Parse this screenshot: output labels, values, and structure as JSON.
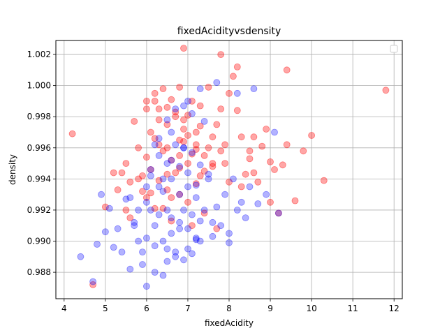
{
  "chart_data": {
    "type": "scatter",
    "title": "fixedAcidityvsdensity",
    "xlabel": "fixedAcidity",
    "ylabel": "density",
    "xlim": [
      3.8,
      12.2
    ],
    "ylim": [
      0.9863,
      1.0029
    ],
    "xticks": [
      4,
      5,
      6,
      7,
      8,
      9,
      10,
      11,
      12
    ],
    "yticks": [
      0.988,
      0.99,
      0.992,
      0.994,
      0.996,
      0.998,
      1.0,
      1.002
    ],
    "ytick_labels": [
      "0.988",
      "0.990",
      "0.992",
      "0.994",
      "0.996",
      "0.998",
      "1.000",
      "1.002"
    ],
    "grid": true,
    "legend_placement": "top-right",
    "series": [
      {
        "color": "#ff0000",
        "alpha": 0.35,
        "x": [
          4.2,
          4.7,
          5.0,
          5.2,
          5.3,
          5.4,
          5.5,
          5.6,
          5.7,
          5.8,
          5.9,
          6.0,
          6.0,
          6.1,
          6.2,
          6.3,
          6.3,
          6.4,
          6.5,
          6.5,
          6.6,
          6.7,
          6.8,
          6.8,
          6.9,
          7.0,
          7.0,
          7.1,
          7.2,
          7.3,
          7.4,
          7.5,
          7.6,
          7.7,
          7.8,
          7.9,
          8.0,
          8.1,
          8.2,
          8.3,
          8.5,
          8.6,
          8.8,
          8.9,
          9.0,
          9.1,
          9.3,
          9.4,
          9.6,
          9.8,
          10.0,
          10.3,
          11.8,
          6.9,
          7.8,
          8.2,
          9.4,
          6.2,
          6.4,
          6.6,
          6.8,
          7.2,
          7.4,
          7.6,
          5.8,
          6.0,
          6.5,
          7.0,
          7.5,
          8.0,
          6.1,
          6.3,
          6.7,
          6.9,
          7.1,
          7.3,
          6.5,
          6.8,
          7.2,
          6.4,
          6.6,
          7.0,
          7.4,
          5.6,
          5.9,
          6.2,
          6.6,
          7.1,
          7.7,
          8.4,
          8.7,
          9.2,
          6.0,
          6.3,
          6.8,
          7.3,
          7.9,
          8.5,
          5.5,
          6.1,
          6.7,
          7.6,
          8.3,
          9.0,
          6.2,
          6.5,
          6.9,
          7.2,
          7.8,
          8.6
        ],
        "y": [
          0.9969,
          0.9872,
          0.9922,
          0.9944,
          0.9933,
          0.9944,
          0.995,
          0.9938,
          0.9977,
          0.996,
          0.9942,
          0.999,
          0.9954,
          0.997,
          0.9995,
          0.9985,
          0.9962,
          0.9998,
          0.996,
          0.9943,
          0.9991,
          0.9983,
          0.9955,
          0.9999,
          0.9964,
          0.9981,
          0.995,
          0.999,
          0.9959,
          0.9987,
          0.9945,
          0.9999,
          0.9967,
          0.9975,
          0.9985,
          0.995,
          0.9995,
          1.0006,
          0.9984,
          0.9967,
          0.9958,
          0.9967,
          0.9961,
          0.9972,
          0.9951,
          0.9946,
          0.9949,
          0.9962,
          0.9926,
          0.9958,
          0.9968,
          0.9939,
          0.9997,
          1.0024,
          1.002,
          1.0012,
          1.001,
          0.9966,
          0.9958,
          0.9952,
          0.9947,
          0.9962,
          0.9955,
          0.9948,
          0.994,
          0.9928,
          0.9975,
          0.9968,
          0.996,
          0.9938,
          0.9946,
          0.9939,
          0.998,
          0.9972,
          0.9956,
          0.9942,
          0.9933,
          0.993,
          0.9937,
          0.9921,
          0.9928,
          0.9925,
          0.9918,
          0.9915,
          0.9932,
          0.9921,
          0.9913,
          0.991,
          0.9908,
          0.9943,
          0.9938,
          0.9918,
          0.9985,
          0.9978,
          0.9965,
          0.9974,
          0.9962,
          0.9953,
          0.992,
          0.9931,
          0.9944,
          0.995,
          0.9935,
          0.9925,
          0.999,
          0.9986,
          0.9978,
          0.997,
          0.9958,
          0.9944
        ]
      },
      {
        "color": "#0000ff",
        "alpha": 0.3,
        "x": [
          4.4,
          4.7,
          4.8,
          4.9,
          5.0,
          5.1,
          5.2,
          5.3,
          5.4,
          5.5,
          5.6,
          5.7,
          5.8,
          5.9,
          6.0,
          6.0,
          6.1,
          6.2,
          6.2,
          6.3,
          6.4,
          6.4,
          6.5,
          6.5,
          6.6,
          6.6,
          6.7,
          6.8,
          6.8,
          6.9,
          6.9,
          7.0,
          7.0,
          7.1,
          7.1,
          7.2,
          7.3,
          7.3,
          7.4,
          7.5,
          7.6,
          7.7,
          7.8,
          7.9,
          8.0,
          8.1,
          8.2,
          8.3,
          8.4,
          8.5,
          8.7,
          8.9,
          9.1,
          9.2,
          5.7,
          6.0,
          6.3,
          6.5,
          6.7,
          6.9,
          7.1,
          7.3,
          7.5,
          5.6,
          5.8,
          6.1,
          6.4,
          6.6,
          6.8,
          7.0,
          7.2,
          6.2,
          6.5,
          6.7,
          6.9,
          7.1,
          7.4,
          6.0,
          6.3,
          6.6,
          6.8,
          7.0,
          7.2,
          5.9,
          6.2,
          6.5,
          6.7,
          7.2,
          7.6,
          8.0,
          6.1,
          6.4,
          6.9,
          7.0,
          7.3,
          7.7,
          8.2,
          8.6,
          6.3,
          6.6
        ],
        "y": [
          0.989,
          0.9874,
          0.9898,
          0.993,
          0.9906,
          0.9921,
          0.9896,
          0.9908,
          0.9893,
          0.9927,
          0.9882,
          0.9912,
          0.99,
          0.9885,
          0.9871,
          0.9902,
          0.992,
          0.991,
          0.988,
          0.9935,
          0.99,
          0.9878,
          0.992,
          0.9895,
          0.994,
          0.9915,
          0.989,
          0.993,
          0.9908,
          0.992,
          0.9888,
          0.9935,
          0.9895,
          0.9917,
          0.9892,
          0.9928,
          0.9913,
          0.99,
          0.992,
          0.994,
          0.9912,
          0.9922,
          0.991,
          0.993,
          0.9905,
          0.994,
          0.992,
          0.9925,
          0.9915,
          0.9935,
          0.9924,
          0.993,
          0.997,
          0.9918,
          0.991,
          0.9935,
          0.9955,
          0.995,
          0.9962,
          0.996,
          0.9957,
          0.9949,
          0.9943,
          0.9928,
          0.992,
          0.9942,
          0.994,
          0.9952,
          0.9948,
          0.9944,
          0.9936,
          0.9962,
          0.9978,
          0.9985,
          0.9987,
          0.9982,
          0.9977,
          0.9925,
          0.9917,
          0.9905,
          0.9912,
          0.9908,
          0.9902,
          0.9893,
          0.9897,
          0.9887,
          0.9893,
          0.9901,
          0.9903,
          0.9899,
          0.9946,
          0.9932,
          0.996,
          0.999,
          0.9998,
          1.0002,
          0.9995,
          0.9998,
          0.9966,
          0.997
        ]
      }
    ]
  }
}
